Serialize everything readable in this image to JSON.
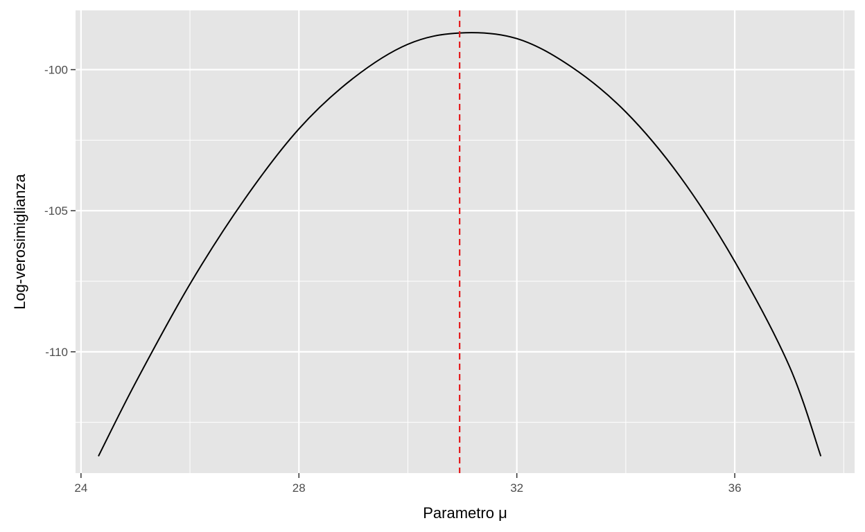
{
  "chart_data": {
    "type": "line",
    "xlabel": "Parametro μ",
    "ylabel": "Log-verosimiglianza",
    "xlim": [
      23.9,
      38.2
    ],
    "ylim": [
      -114.3,
      -97.9
    ],
    "x_ticks": [
      24,
      28,
      32,
      36
    ],
    "x_tick_labels": [
      "24",
      "28",
      "32",
      "36"
    ],
    "x_minor_ticks": [
      26,
      30,
      34,
      38
    ],
    "y_ticks": [
      -100,
      -105,
      -110
    ],
    "y_tick_labels": [
      "-100",
      "-105",
      "-110"
    ],
    "y_minor_ticks": [
      -97.5,
      -102.5,
      -107.5,
      -112.5
    ],
    "grid": true,
    "series": [
      {
        "color": "#000000",
        "x": [
          24.32,
          25.0,
          26.0,
          27.0,
          28.0,
          29.0,
          30.0,
          30.95,
          32.0,
          33.0,
          34.0,
          35.0,
          36.0,
          37.0,
          37.58
        ],
        "y": [
          -113.7,
          -111.1,
          -107.6,
          -104.6,
          -102.1,
          -100.3,
          -99.1,
          -98.7,
          -98.9,
          -99.9,
          -101.5,
          -103.8,
          -106.8,
          -110.5,
          -113.7
        ]
      }
    ],
    "vline": {
      "x": 30.95,
      "color": "#e41a1c",
      "style": "dashed"
    },
    "colors": {
      "panel_bg": "#e5e5e5",
      "grid": "#ffffff",
      "curve": "#000000",
      "vline": "#e41a1c"
    }
  }
}
